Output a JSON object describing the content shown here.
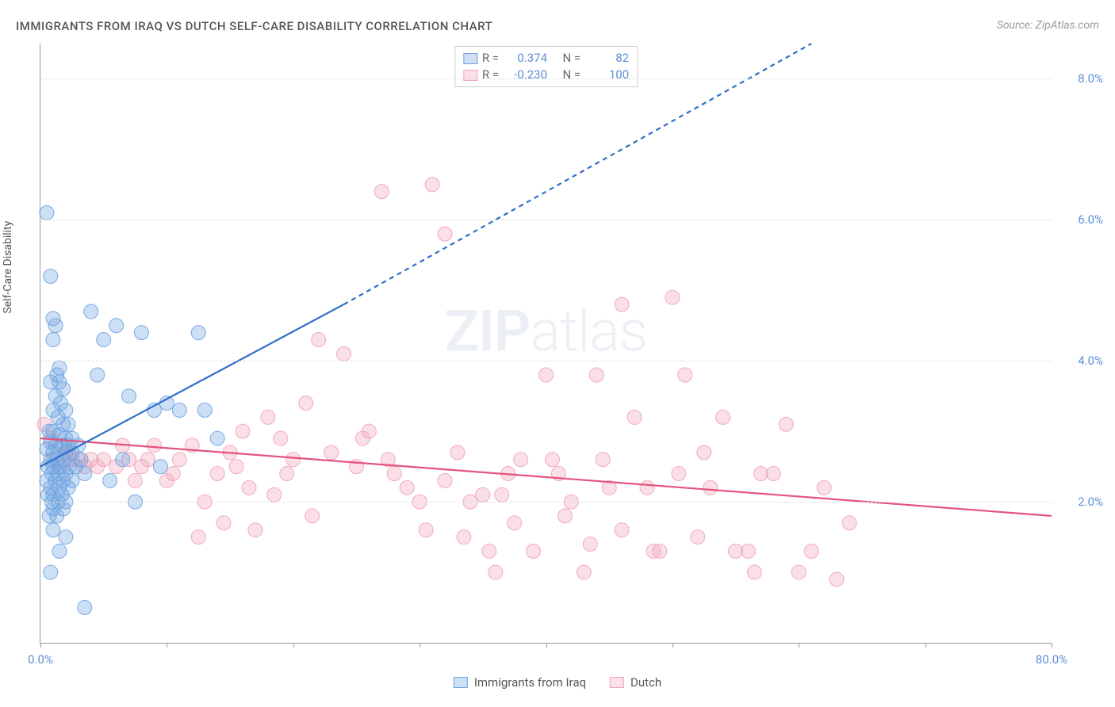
{
  "title": "IMMIGRANTS FROM IRAQ VS DUTCH SELF-CARE DISABILITY CORRELATION CHART",
  "source_label": "Source: ZipAtlas.com",
  "y_axis_label": "Self-Care Disability",
  "watermark": {
    "bold": "ZIP",
    "rest": "atlas"
  },
  "chart": {
    "type": "scatter",
    "background_color": "#ffffff",
    "grid_color": "#dddddd",
    "axis_color": "#999999",
    "tick_label_color": "#5b8fd6",
    "xlim": [
      0,
      80
    ],
    "ylim": [
      0,
      8.5
    ],
    "x_ticks": [
      0,
      10,
      20,
      30,
      40,
      50,
      60,
      70,
      80
    ],
    "x_tick_labels": {
      "0": "0.0%",
      "80": "80.0%"
    },
    "y_gridlines": [
      2,
      4,
      6,
      8
    ],
    "y_tick_labels": {
      "2": "2.0%",
      "4": "4.0%",
      "6": "6.0%",
      "8": "8.0%"
    },
    "marker_radius": 9,
    "marker_fill_opacity": 0.35,
    "marker_stroke_opacity": 0.9,
    "marker_stroke_width": 1,
    "trend_line_width": 2.2,
    "trend_dash": "6,5"
  },
  "series": {
    "iraq": {
      "label": "Immigrants from Iraq",
      "color": "#6ea3e0",
      "line_color": "#2f6fc9",
      "R": "0.374",
      "N": "82",
      "trend": {
        "x1": 0,
        "y1": 2.5,
        "x_solid_end": 24,
        "y_solid_end": 4.8,
        "x2": 61,
        "y2": 8.5
      },
      "points": [
        [
          0.5,
          6.1
        ],
        [
          0.8,
          5.2
        ],
        [
          1.0,
          4.6
        ],
        [
          1.2,
          4.5
        ],
        [
          1.0,
          4.3
        ],
        [
          1.5,
          3.9
        ],
        [
          1.3,
          3.8
        ],
        [
          1.5,
          3.7
        ],
        [
          0.8,
          3.7
        ],
        [
          1.8,
          3.6
        ],
        [
          1.2,
          3.5
        ],
        [
          1.6,
          3.4
        ],
        [
          2.0,
          3.3
        ],
        [
          1.0,
          3.3
        ],
        [
          1.4,
          3.2
        ],
        [
          1.8,
          3.1
        ],
        [
          2.2,
          3.1
        ],
        [
          1.0,
          3.0
        ],
        [
          0.7,
          3.0
        ],
        [
          1.5,
          2.95
        ],
        [
          2.0,
          2.9
        ],
        [
          2.5,
          2.9
        ],
        [
          0.8,
          2.85
        ],
        [
          1.2,
          2.8
        ],
        [
          1.7,
          2.8
        ],
        [
          2.2,
          2.8
        ],
        [
          3.0,
          2.8
        ],
        [
          0.5,
          2.75
        ],
        [
          1.0,
          2.7
        ],
        [
          2.0,
          2.7
        ],
        [
          2.5,
          2.7
        ],
        [
          0.8,
          2.6
        ],
        [
          1.3,
          2.6
        ],
        [
          1.8,
          2.6
        ],
        [
          3.2,
          2.6
        ],
        [
          0.6,
          2.5
        ],
        [
          1.0,
          2.5
        ],
        [
          1.5,
          2.5
        ],
        [
          2.3,
          2.5
        ],
        [
          2.8,
          2.5
        ],
        [
          0.9,
          2.4
        ],
        [
          1.4,
          2.4
        ],
        [
          2.0,
          2.4
        ],
        [
          3.5,
          2.4
        ],
        [
          0.5,
          2.3
        ],
        [
          1.2,
          2.3
        ],
        [
          1.8,
          2.3
        ],
        [
          2.5,
          2.3
        ],
        [
          0.8,
          2.2
        ],
        [
          1.5,
          2.2
        ],
        [
          2.2,
          2.2
        ],
        [
          0.6,
          2.1
        ],
        [
          1.0,
          2.1
        ],
        [
          1.7,
          2.1
        ],
        [
          0.9,
          2.0
        ],
        [
          1.4,
          2.0
        ],
        [
          2.0,
          2.0
        ],
        [
          1.0,
          1.9
        ],
        [
          1.8,
          1.9
        ],
        [
          0.7,
          1.8
        ],
        [
          1.3,
          1.8
        ],
        [
          1.0,
          1.6
        ],
        [
          2.0,
          1.5
        ],
        [
          1.5,
          1.3
        ],
        [
          0.8,
          1.0
        ],
        [
          3.5,
          0.5
        ],
        [
          4.0,
          4.7
        ],
        [
          5.0,
          4.3
        ],
        [
          6.0,
          4.5
        ],
        [
          8.0,
          4.4
        ],
        [
          7.0,
          3.5
        ],
        [
          9.0,
          3.3
        ],
        [
          10.0,
          3.4
        ],
        [
          11.0,
          3.3
        ],
        [
          12.5,
          4.4
        ],
        [
          13.0,
          3.3
        ],
        [
          14.0,
          2.9
        ],
        [
          6.5,
          2.6
        ],
        [
          9.5,
          2.5
        ],
        [
          5.5,
          2.3
        ],
        [
          7.5,
          2.0
        ],
        [
          4.5,
          3.8
        ]
      ]
    },
    "dutch": {
      "label": "Dutch",
      "color": "#f0a3b8",
      "line_color": "#e3547d",
      "R": "-0.230",
      "N": "100",
      "trend": {
        "x1": 0,
        "y1": 2.9,
        "x_solid_end": 80,
        "y_solid_end": 1.8,
        "x2": 80,
        "y2": 1.8
      },
      "points": [
        [
          0.3,
          3.1
        ],
        [
          0.8,
          2.9
        ],
        [
          1.5,
          2.8
        ],
        [
          2.0,
          2.7
        ],
        [
          2.5,
          2.6
        ],
        [
          1.0,
          2.6
        ],
        [
          1.8,
          2.5
        ],
        [
          3.0,
          2.6
        ],
        [
          3.5,
          2.5
        ],
        [
          4.0,
          2.6
        ],
        [
          4.5,
          2.5
        ],
        [
          5.0,
          2.6
        ],
        [
          6.0,
          2.5
        ],
        [
          7.0,
          2.6
        ],
        [
          8.0,
          2.5
        ],
        [
          2.2,
          2.7
        ],
        [
          27.0,
          6.4
        ],
        [
          31.0,
          6.5
        ],
        [
          32.0,
          5.8
        ],
        [
          46.0,
          4.8
        ],
        [
          22.0,
          4.3
        ],
        [
          24.0,
          4.1
        ],
        [
          16.0,
          3.0
        ],
        [
          18.0,
          3.2
        ],
        [
          19.0,
          2.9
        ],
        [
          21.0,
          3.4
        ],
        [
          23.0,
          2.7
        ],
        [
          25.0,
          2.5
        ],
        [
          26.0,
          3.0
        ],
        [
          28.0,
          2.4
        ],
        [
          29.0,
          2.2
        ],
        [
          30.0,
          2.0
        ],
        [
          30.5,
          1.6
        ],
        [
          32.0,
          2.3
        ],
        [
          34.0,
          2.0
        ],
        [
          35.0,
          2.1
        ],
        [
          35.5,
          1.3
        ],
        [
          36.0,
          1.0
        ],
        [
          37.0,
          2.4
        ],
        [
          38.0,
          2.6
        ],
        [
          39.0,
          1.3
        ],
        [
          40.0,
          3.8
        ],
        [
          41.0,
          2.4
        ],
        [
          42.0,
          2.0
        ],
        [
          43.0,
          1.0
        ],
        [
          43.5,
          1.4
        ],
        [
          44.0,
          3.8
        ],
        [
          45.0,
          2.2
        ],
        [
          46.0,
          1.6
        ],
        [
          47.0,
          3.2
        ],
        [
          48.0,
          2.2
        ],
        [
          49.0,
          1.3
        ],
        [
          50.0,
          4.9
        ],
        [
          50.5,
          2.4
        ],
        [
          51.0,
          3.8
        ],
        [
          52.0,
          1.5
        ],
        [
          53.0,
          2.2
        ],
        [
          54.0,
          3.2
        ],
        [
          55.0,
          1.3
        ],
        [
          56.0,
          1.3
        ],
        [
          57.0,
          2.4
        ],
        [
          60.0,
          1.0
        ],
        [
          61.0,
          1.3
        ],
        [
          62.0,
          2.2
        ],
        [
          10.0,
          2.3
        ],
        [
          11.0,
          2.6
        ],
        [
          12.0,
          2.8
        ],
        [
          13.0,
          2.0
        ],
        [
          14.0,
          2.4
        ],
        [
          15.0,
          2.7
        ],
        [
          17.0,
          1.6
        ],
        [
          18.5,
          2.1
        ],
        [
          20.0,
          2.6
        ],
        [
          21.5,
          1.8
        ],
        [
          9.0,
          2.8
        ],
        [
          10.5,
          2.4
        ],
        [
          12.5,
          1.5
        ],
        [
          14.5,
          1.7
        ],
        [
          15.5,
          2.5
        ],
        [
          16.5,
          2.2
        ],
        [
          19.5,
          2.4
        ],
        [
          6.5,
          2.8
        ],
        [
          7.5,
          2.3
        ],
        [
          8.5,
          2.6
        ],
        [
          25.5,
          2.9
        ],
        [
          27.5,
          2.6
        ],
        [
          33.0,
          2.7
        ],
        [
          36.5,
          2.1
        ],
        [
          40.5,
          2.6
        ],
        [
          44.5,
          2.6
        ],
        [
          48.5,
          1.3
        ],
        [
          52.5,
          2.7
        ],
        [
          56.5,
          1.0
        ],
        [
          58.0,
          2.4
        ],
        [
          59.0,
          3.1
        ],
        [
          63.0,
          0.9
        ],
        [
          64.0,
          1.7
        ],
        [
          33.5,
          1.5
        ],
        [
          37.5,
          1.7
        ],
        [
          41.5,
          1.8
        ]
      ]
    }
  },
  "stat_box": {
    "rows": [
      {
        "swatch": "iraq",
        "r_label": "R =",
        "r_val": "0.374",
        "n_label": "N =",
        "n_val": "82"
      },
      {
        "swatch": "dutch",
        "r_label": "R =",
        "r_val": "-0.230",
        "n_label": "N =",
        "n_val": "100"
      }
    ]
  },
  "bottom_legend": [
    {
      "series": "iraq",
      "label": "Immigrants from Iraq"
    },
    {
      "series": "dutch",
      "label": "Dutch"
    }
  ]
}
